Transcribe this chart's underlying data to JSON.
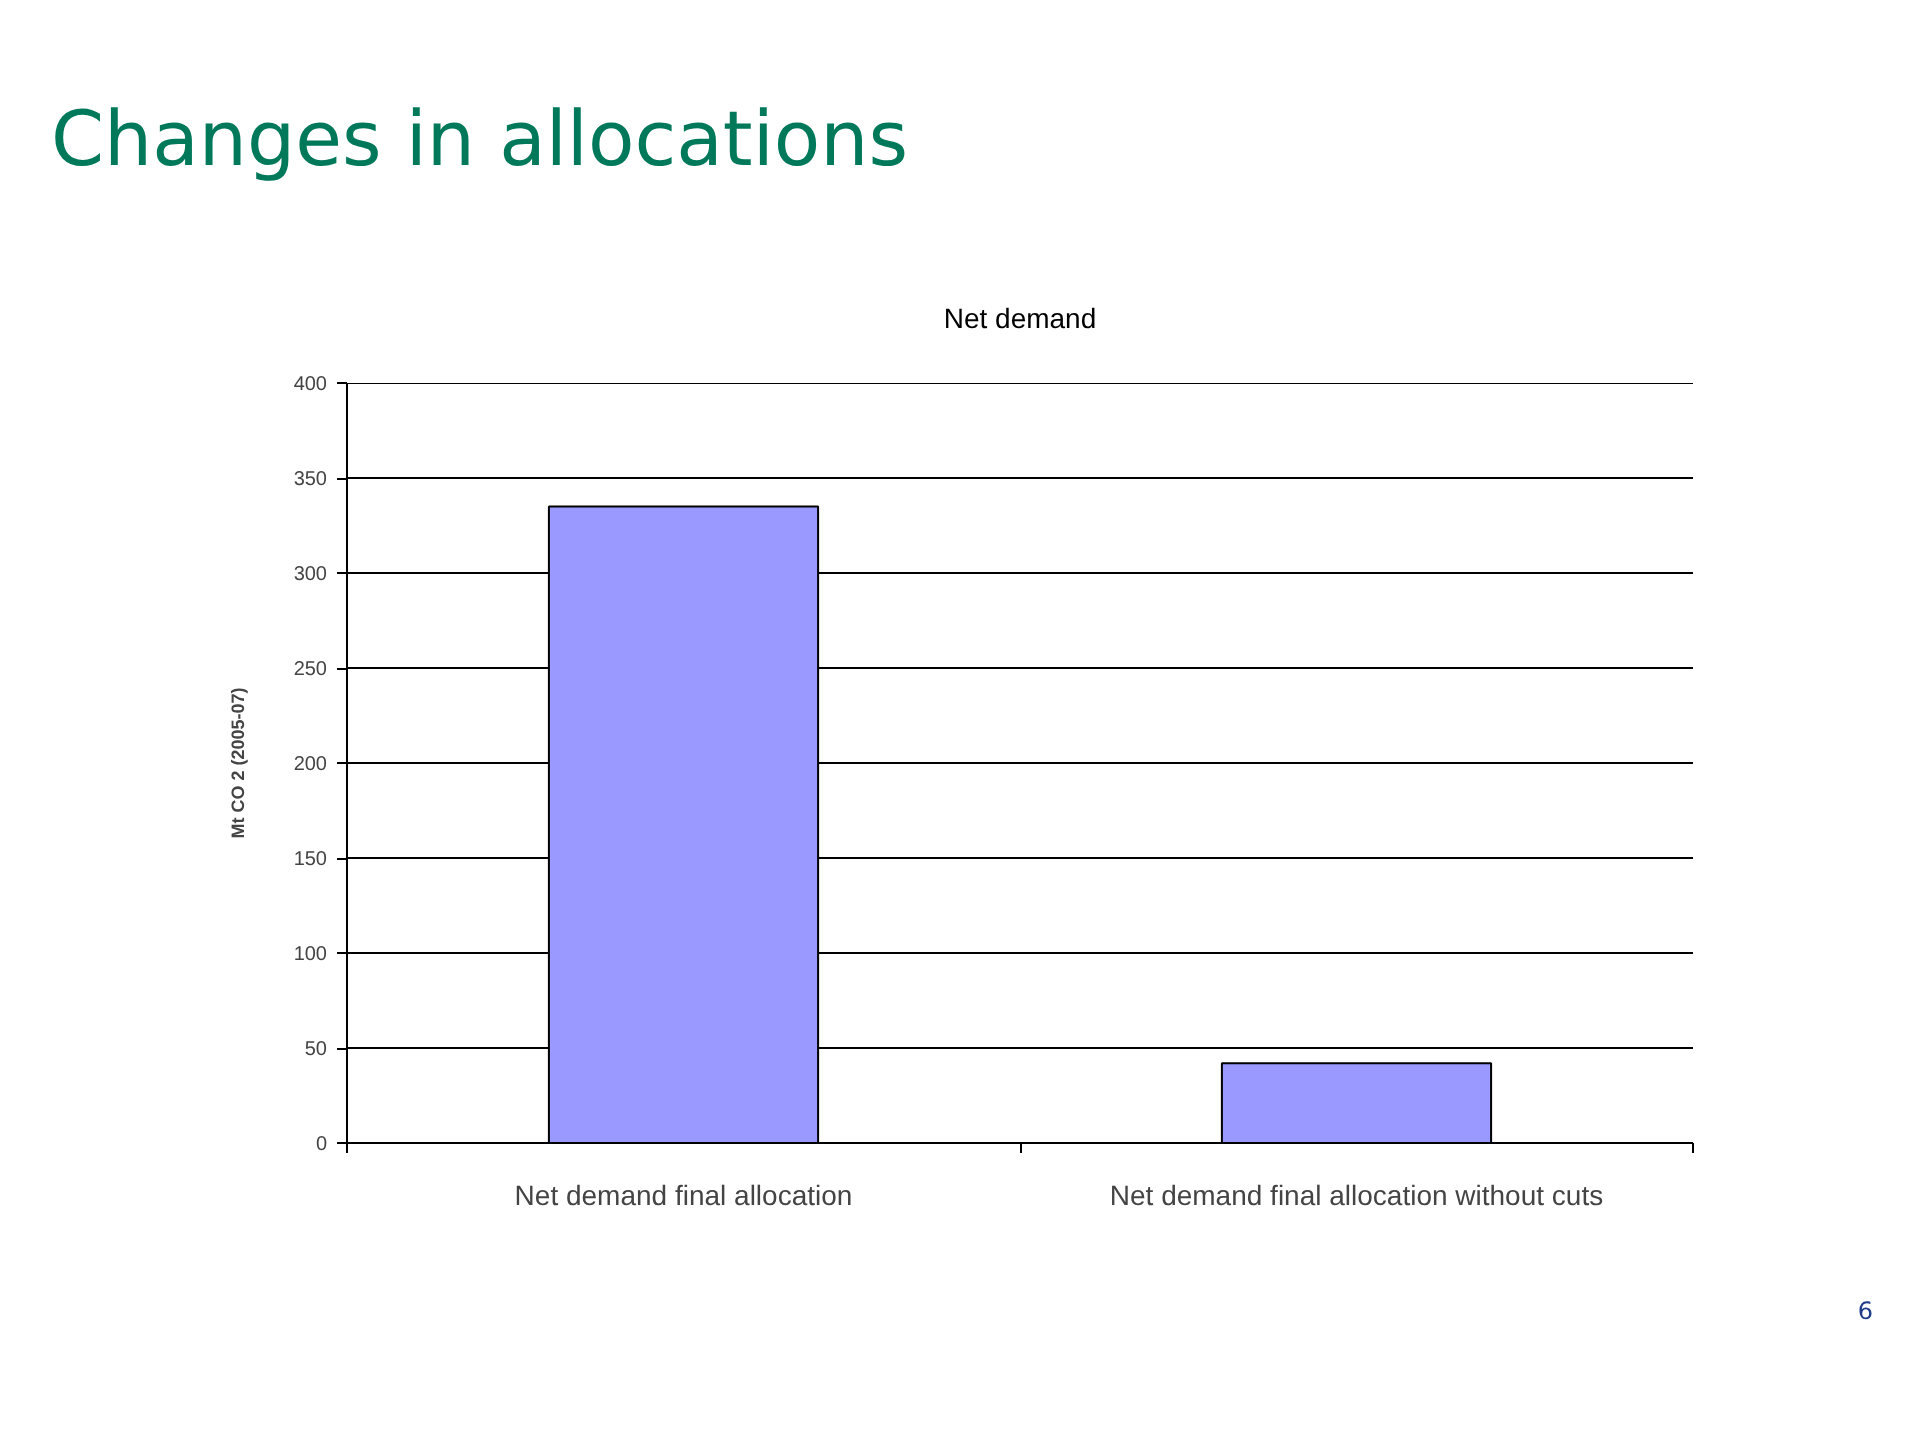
{
  "chart_data": {
    "type": "bar",
    "title": "Changes in allocations",
    "subtitle": "Net demand",
    "ylabel": "Mt CO 2 (2005-07)",
    "categories": [
      "Net demand final allocation",
      "Net demand final allocation without cuts"
    ],
    "values": [
      335,
      42
    ],
    "color": "#9999ff",
    "ylim": [
      0,
      400
    ],
    "yticks": [
      0,
      50,
      100,
      150,
      200,
      250,
      300,
      350,
      400
    ],
    "grid": "y",
    "annotations": [
      "6"
    ]
  }
}
